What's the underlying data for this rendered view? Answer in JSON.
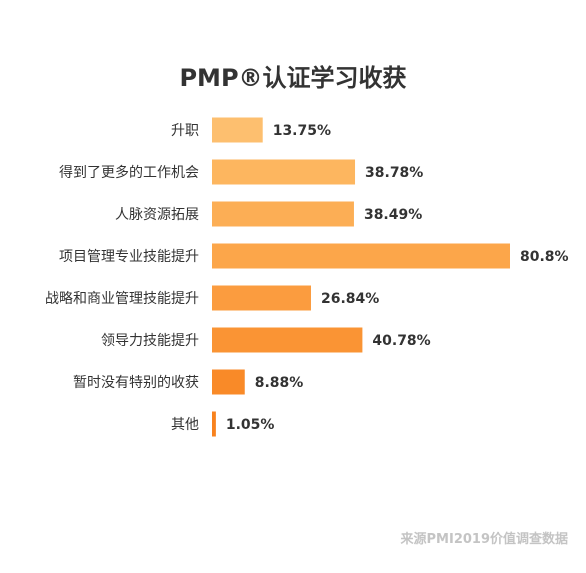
{
  "chart_data": {
    "type": "bar",
    "orientation": "horizontal",
    "title": "PMP®认证学习收获",
    "categories": [
      "升职",
      "得到了更多的工作机会",
      "人脉资源拓展",
      "项目管理专业技能提升",
      "战略和商业管理技能提升",
      "领导力技能提升",
      "暂时没有特别的收获",
      "其他"
    ],
    "values": [
      13.75,
      38.78,
      38.49,
      80.8,
      26.84,
      40.78,
      8.88,
      1.05
    ],
    "value_labels": [
      "13.75%",
      "38.78%",
      "38.49%",
      "80.8%",
      "26.84%",
      "40.78%",
      "8.88%",
      "1.05%"
    ],
    "unit": "%",
    "grid": false,
    "legend": "none",
    "bar_colors": [
      "#fdbf6f",
      "#fdb65f",
      "#fcae55",
      "#fca64a",
      "#fb9c3f",
      "#fa9434",
      "#f98a28",
      "#f8821e"
    ]
  },
  "source": "来源PMI2019价值调查数据"
}
